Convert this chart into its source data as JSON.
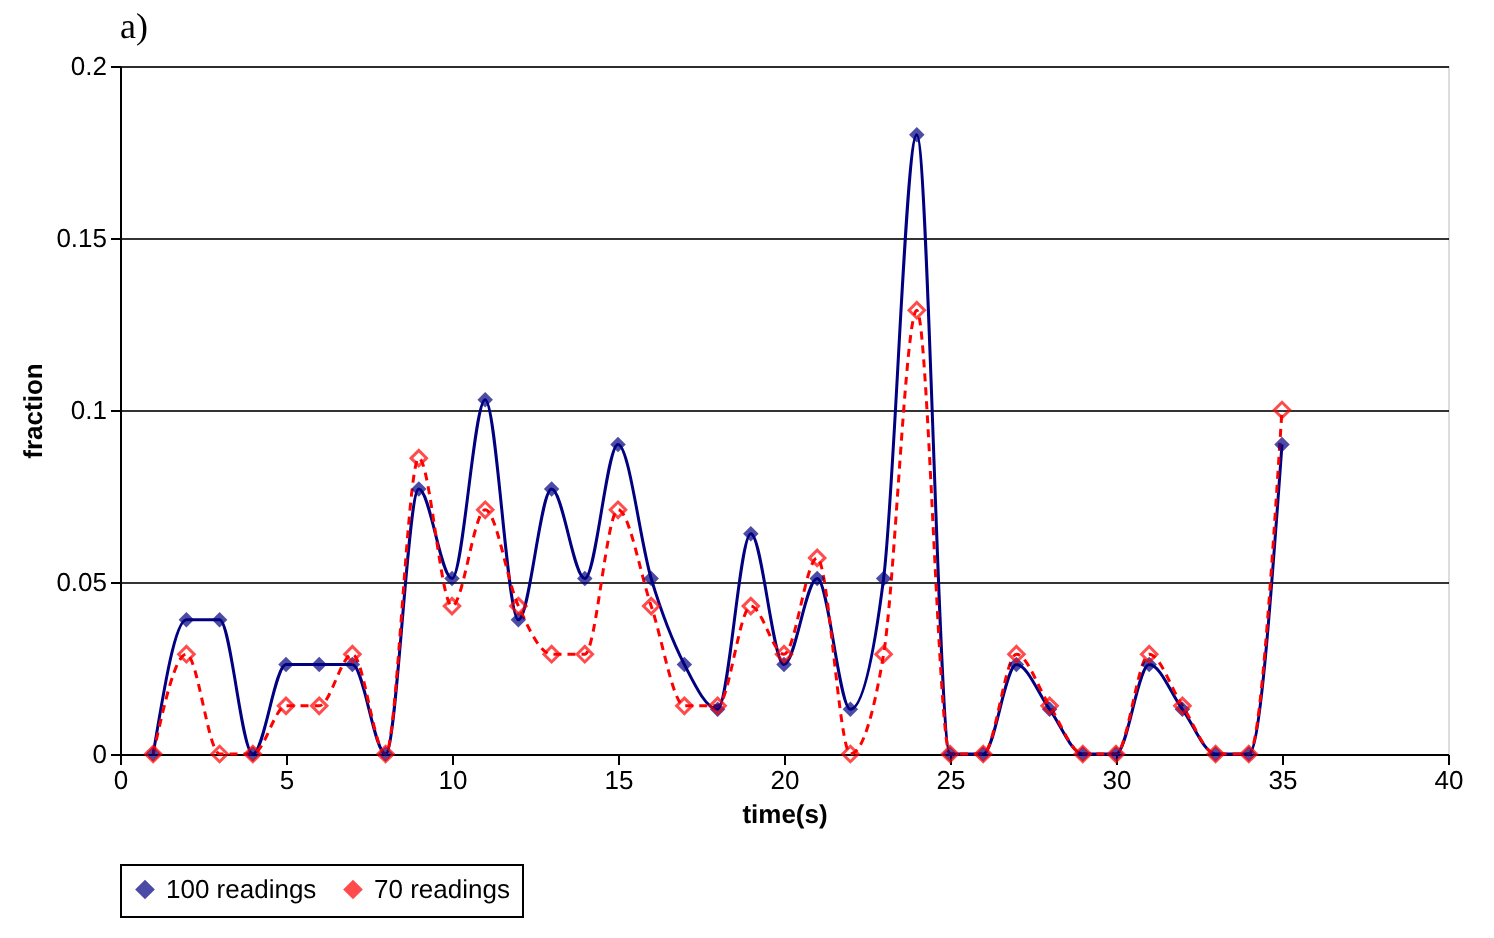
{
  "chart_data": {
    "type": "line",
    "title": "a)",
    "xlabel": "time(s)",
    "ylabel": "fraction",
    "x": [
      1,
      2,
      3,
      4,
      5,
      6,
      7,
      8,
      9,
      10,
      11,
      12,
      13,
      14,
      15,
      16,
      17,
      18,
      19,
      20,
      21,
      22,
      23,
      24,
      25,
      26,
      27,
      28,
      29,
      30,
      31,
      32,
      33,
      34,
      35
    ],
    "series": [
      {
        "name": "100 readings",
        "color": "#000080",
        "line_style": "solid",
        "values": [
          0,
          0.039,
          0.039,
          0,
          0.026,
          0.026,
          0.026,
          0,
          0.077,
          0.051,
          0.103,
          0.039,
          0.077,
          0.051,
          0.09,
          0.051,
          0.026,
          0.013,
          0.064,
          0.026,
          0.051,
          0.013,
          0.051,
          0.18,
          0,
          0,
          0.026,
          0.013,
          0,
          0,
          0.026,
          0.013,
          0,
          0,
          0.09
        ]
      },
      {
        "name": "70 readings",
        "color": "#ff0000",
        "line_style": "dashed",
        "values": [
          0,
          0.029,
          0,
          0,
          0.014,
          0.014,
          0.029,
          0,
          0.086,
          0.043,
          0.071,
          0.043,
          0.029,
          0.029,
          0.071,
          0.043,
          0.014,
          0.014,
          0.043,
          0.029,
          0.057,
          0,
          0.029,
          0.129,
          0,
          0,
          0.029,
          0.014,
          0,
          0,
          0.029,
          0.014,
          0,
          0,
          0.1
        ]
      }
    ],
    "xlim": [
      0,
      40
    ],
    "xticks": [
      0,
      5,
      10,
      15,
      20,
      25,
      30,
      35,
      40
    ],
    "ylim": [
      0,
      0.2
    ],
    "yticks": [
      0,
      0.05,
      0.1,
      0.15,
      0.2
    ],
    "grid": "y",
    "legend": "bottom",
    "marker": "diamond"
  }
}
